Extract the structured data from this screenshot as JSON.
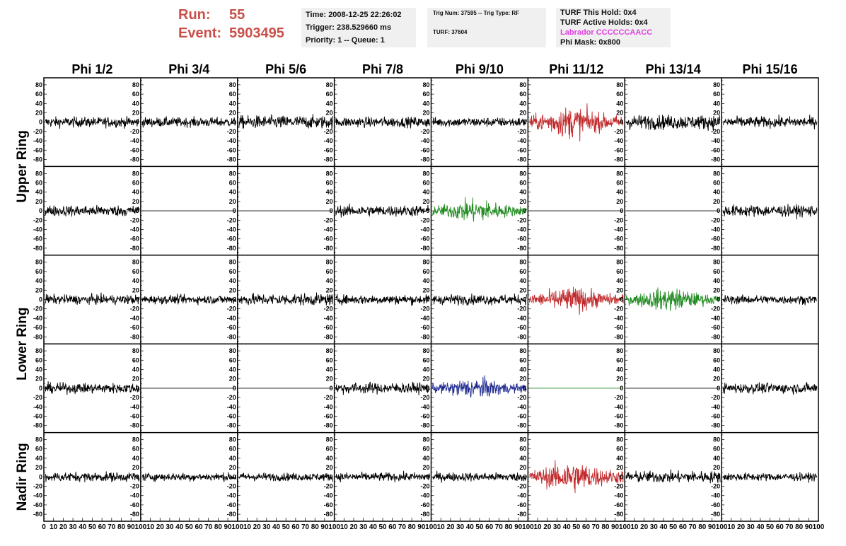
{
  "header": {
    "run_label": "Run:",
    "run_value": "55",
    "event_label": "Event:",
    "event_value": "5903495"
  },
  "info_time": {
    "time": "Time: 2008-12-25 22:26:02",
    "trigger": "Trigger: 238.529660 ms",
    "priority": "Priority: 1 -- Queue: 1"
  },
  "info_trig": {
    "trig": "Trig Num: 37595 -- Trig Type: RF",
    "turf": "TURF: 37604"
  },
  "info_turf": {
    "hold": "TURF This Hold: 0x4",
    "active": "TURF Active Holds: 0x4",
    "labrador": "Labrador CCCCCCAACC",
    "phimask": "Phi Mask: 0x800"
  },
  "colors": {
    "header_red": "#c9504a",
    "labrador": "#e040e0",
    "normal": "#000000",
    "red": "#c0282a",
    "green": "#228b22",
    "blue": "#1f2a8f"
  },
  "chart_data": {
    "type": "line",
    "columns": [
      "Phi 1/2",
      "Phi 3/4",
      "Phi 5/6",
      "Phi 7/8",
      "Phi 9/10",
      "Phi 11/12",
      "Phi 13/14",
      "Phi 15/16"
    ],
    "ring_labels": [
      "Upper Ring",
      "Lower Ring",
      "Nadir Ring"
    ],
    "ylim": [
      -95,
      95
    ],
    "xlim": [
      0,
      100
    ],
    "yticks": [
      80,
      60,
      40,
      20,
      0,
      -20,
      -40,
      -60,
      -80
    ],
    "xticks": [
      "0",
      "10",
      "20",
      "30",
      "40",
      "50",
      "60",
      "70",
      "80",
      "90",
      "100"
    ],
    "panels": [
      [
        {
          "c": "normal",
          "a": 14
        },
        {
          "c": "normal",
          "a": 13
        },
        {
          "c": "normal",
          "a": 18
        },
        {
          "c": "normal",
          "a": 14
        },
        {
          "c": "normal",
          "a": 13
        },
        {
          "c": "red",
          "a": 30
        },
        {
          "c": "normal",
          "a": 20
        },
        {
          "c": "normal",
          "a": 15
        }
      ],
      [
        {
          "c": "normal",
          "a": 15
        },
        {
          "c": "normal",
          "a": 0
        },
        {
          "c": "normal",
          "a": 0
        },
        {
          "c": "normal",
          "a": 15
        },
        {
          "c": "green",
          "a": 22
        },
        {
          "c": "normal",
          "a": 0
        },
        {
          "c": "normal",
          "a": 0
        },
        {
          "c": "normal",
          "a": 16
        }
      ],
      [
        {
          "c": "normal",
          "a": 13
        },
        {
          "c": "normal",
          "a": 12
        },
        {
          "c": "normal",
          "a": 16
        },
        {
          "c": "normal",
          "a": 13
        },
        {
          "c": "normal",
          "a": 14
        },
        {
          "c": "red",
          "a": 24
        },
        {
          "c": "green",
          "a": 22
        },
        {
          "c": "normal",
          "a": 12
        }
      ],
      [
        {
          "c": "normal",
          "a": 14
        },
        {
          "c": "normal",
          "a": 0
        },
        {
          "c": "normal",
          "a": 0
        },
        {
          "c": "normal",
          "a": 15
        },
        {
          "c": "blue",
          "a": 20
        },
        {
          "c": "green",
          "a": 0
        },
        {
          "c": "normal",
          "a": 0
        },
        {
          "c": "normal",
          "a": 14
        }
      ],
      [
        {
          "c": "normal",
          "a": 13
        },
        {
          "c": "normal",
          "a": 11
        },
        {
          "c": "normal",
          "a": 11
        },
        {
          "c": "normal",
          "a": 12
        },
        {
          "c": "normal",
          "a": 12
        },
        {
          "c": "red",
          "a": 30
        },
        {
          "c": "normal",
          "a": 16
        },
        {
          "c": "normal",
          "a": 11
        }
      ]
    ]
  }
}
